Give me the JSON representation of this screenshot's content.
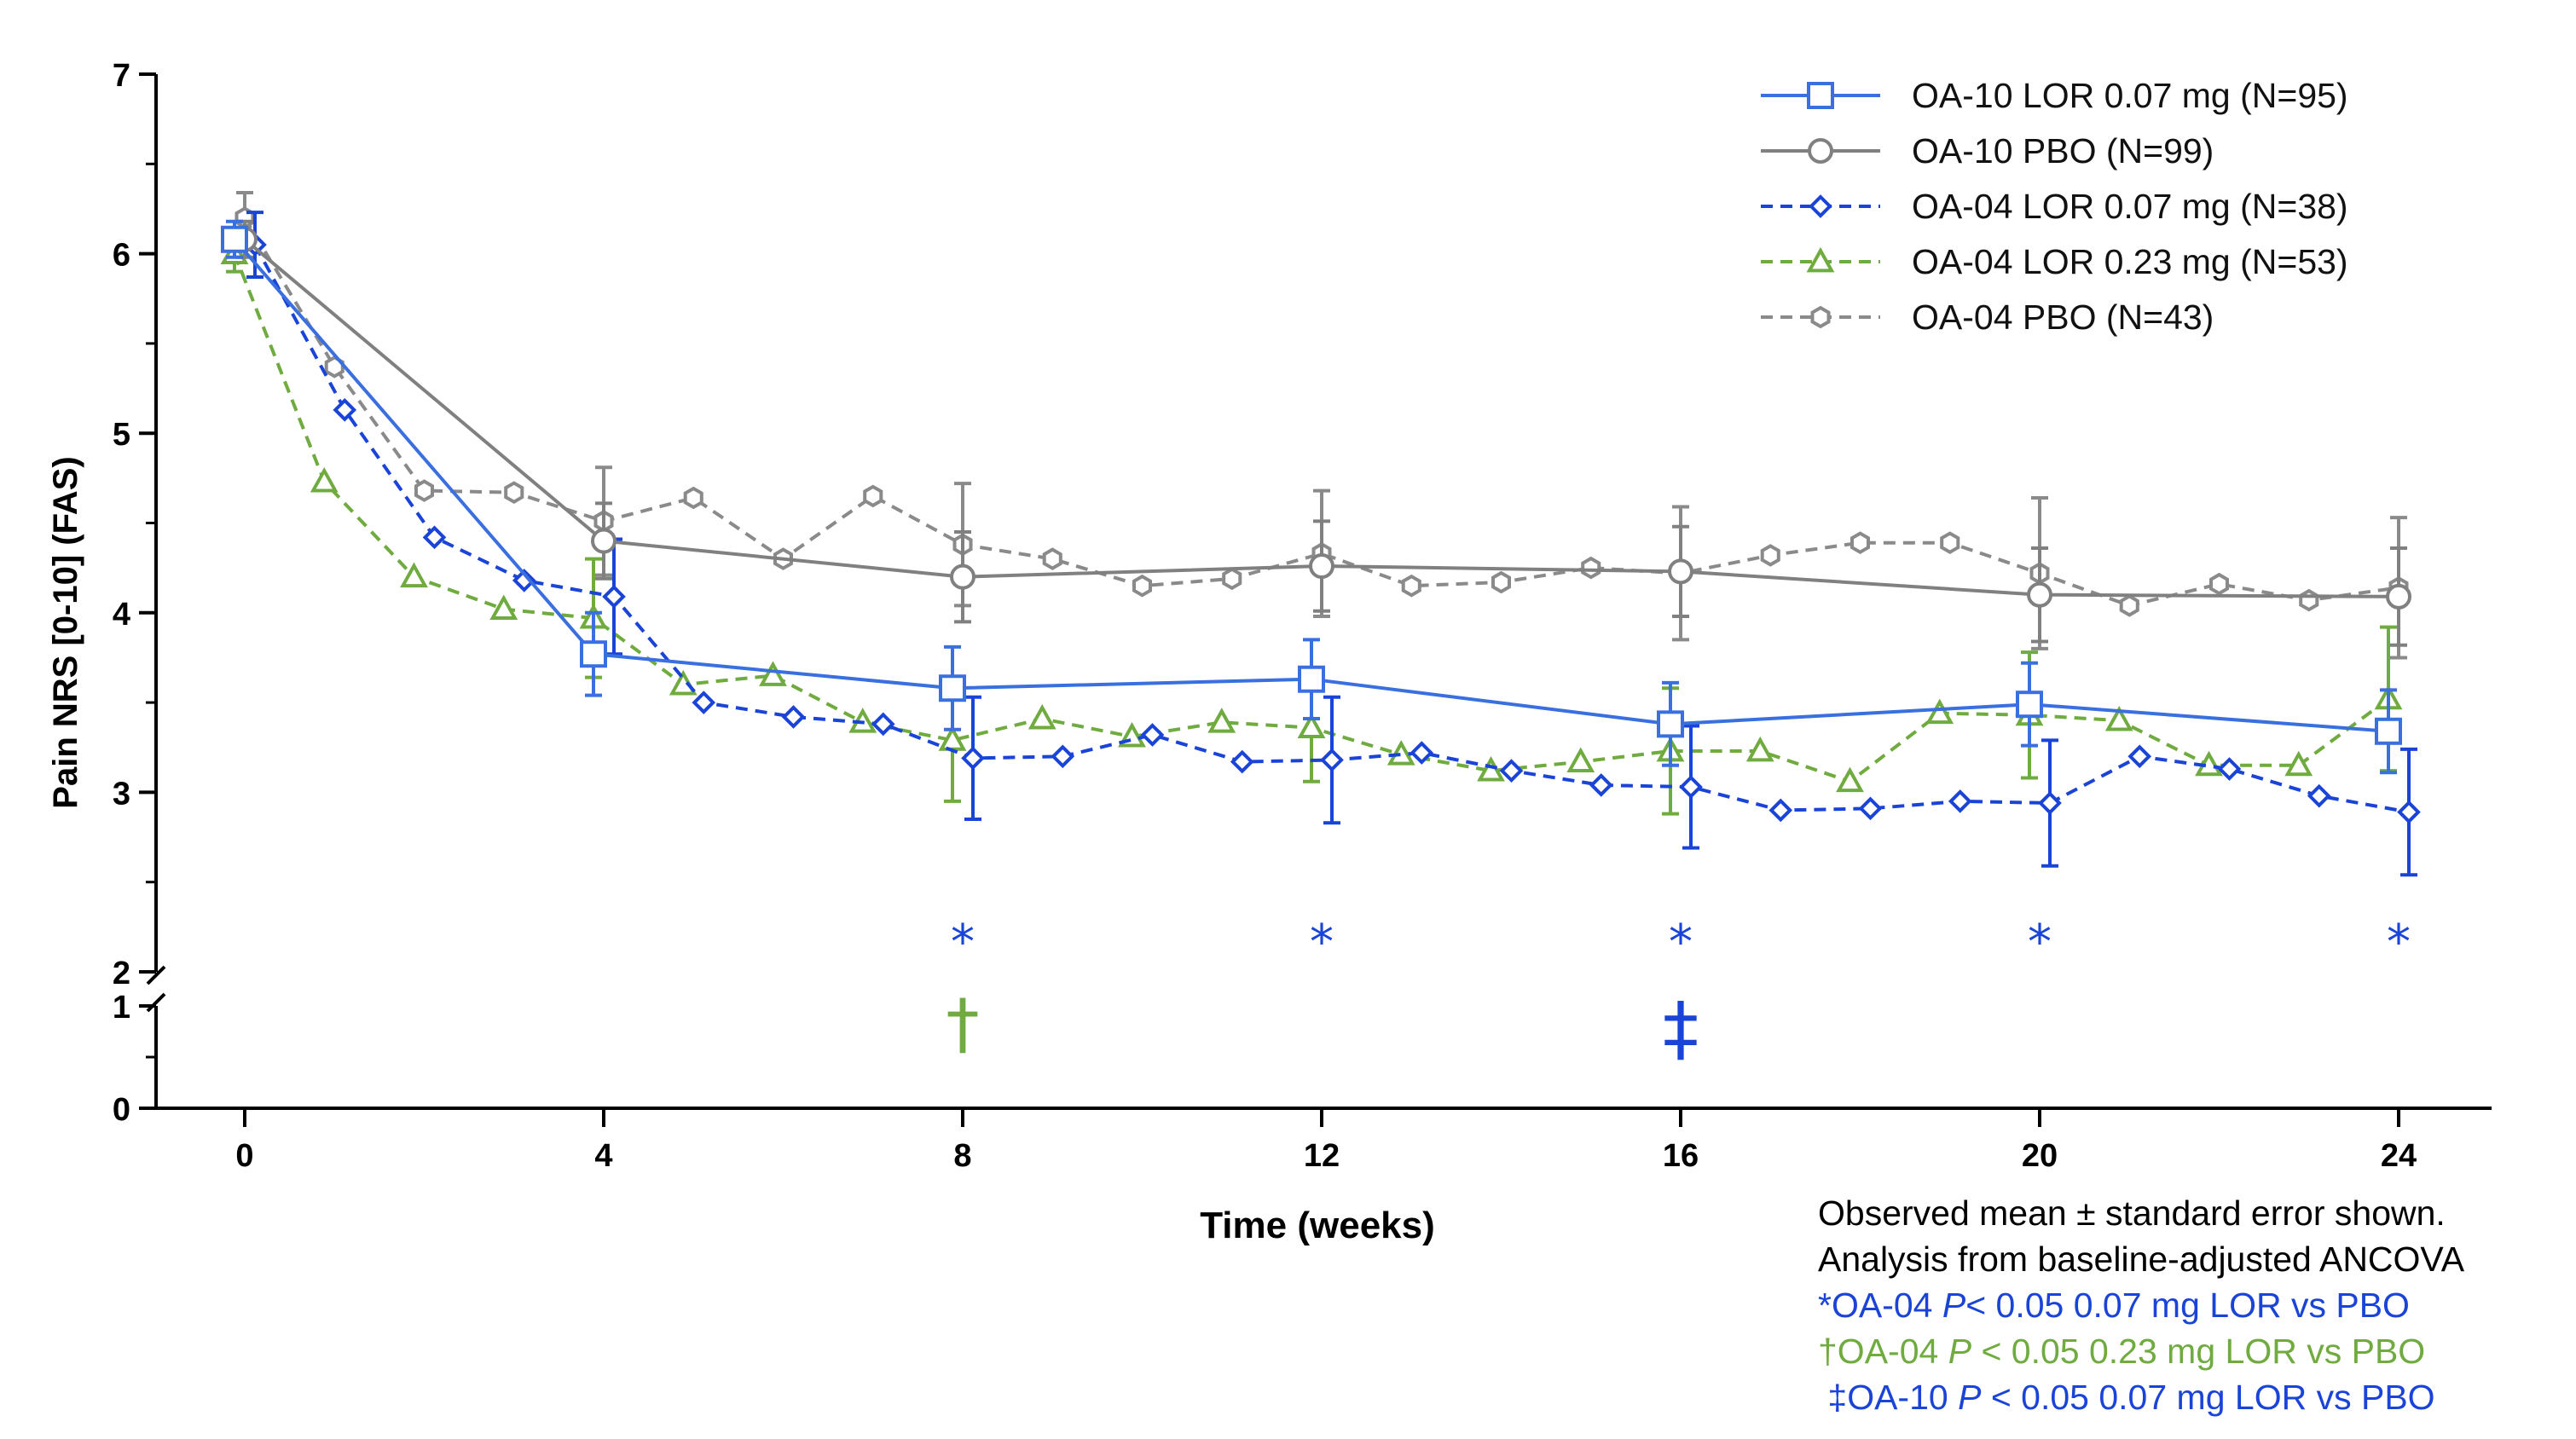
{
  "chart_data": {
    "type": "line",
    "xlabel": "Time (weeks)",
    "ylabel": "Pain NRS [0-10] (FAS)",
    "xlim": [
      -1,
      26
    ],
    "xticks": [
      0,
      4,
      8,
      12,
      16,
      20,
      24
    ],
    "ylim_upper": [
      2,
      7
    ],
    "ylim_lower": [
      0,
      1
    ],
    "yticks": [
      0,
      1,
      2,
      3,
      4,
      5,
      6,
      7
    ],
    "axis_break": "between 1 and 2",
    "grid": false,
    "legend_position": "top-right",
    "series": [
      {
        "name": "OA-10 LOR 0.07 mg (N=95)",
        "color": "#3a6fe0",
        "dash": "solid",
        "marker": "square",
        "x": [
          0,
          4,
          8,
          12,
          16,
          20,
          24
        ],
        "y": [
          6.08,
          3.77,
          3.58,
          3.63,
          3.38,
          3.49,
          3.34
        ],
        "err": [
          0.1,
          0.23,
          0.23,
          0.22,
          0.23,
          0.23,
          0.23
        ]
      },
      {
        "name": "OA-10 PBO (N=99)",
        "color": "#808080",
        "dash": "solid",
        "marker": "circle",
        "x": [
          0,
          4,
          8,
          12,
          16,
          20,
          24
        ],
        "y": [
          6.08,
          4.4,
          4.2,
          4.26,
          4.23,
          4.1,
          4.09
        ],
        "err": [
          0.1,
          0.21,
          0.25,
          0.25,
          0.25,
          0.26,
          0.27
        ]
      },
      {
        "name": "OA-04 LOR 0.07 mg (N=38)",
        "color": "#1a44d8",
        "dash": "dashed",
        "marker": "diamond",
        "x": [
          0,
          1,
          2,
          3,
          4,
          5,
          6,
          7,
          8,
          9,
          10,
          11,
          12,
          13,
          14,
          15,
          16,
          17,
          18,
          19,
          20,
          21,
          22,
          23,
          24
        ],
        "y": [
          6.05,
          5.13,
          4.42,
          4.18,
          4.09,
          3.5,
          3.42,
          3.38,
          3.19,
          3.2,
          3.32,
          3.17,
          3.18,
          3.22,
          3.12,
          3.04,
          3.03,
          2.9,
          2.91,
          2.95,
          2.94,
          3.2,
          3.13,
          2.98,
          2.89
        ],
        "err": [
          0.18,
          null,
          null,
          null,
          0.32,
          null,
          null,
          null,
          0.34,
          null,
          null,
          null,
          0.35,
          null,
          null,
          null,
          0.34,
          null,
          null,
          null,
          0.35,
          null,
          null,
          null,
          0.35
        ]
      },
      {
        "name": "OA-04 LOR 0.23 mg (N=53)",
        "color": "#6fab3e",
        "dash": "dashed",
        "marker": "triangle",
        "x": [
          0,
          1,
          2,
          3,
          4,
          5,
          6,
          7,
          8,
          9,
          10,
          11,
          12,
          13,
          14,
          15,
          16,
          17,
          18,
          19,
          20,
          21,
          22,
          23,
          24
        ],
        "y": [
          6.0,
          4.73,
          4.2,
          4.02,
          3.97,
          3.6,
          3.65,
          3.39,
          3.29,
          3.41,
          3.31,
          3.39,
          3.36,
          3.21,
          3.12,
          3.17,
          3.23,
          3.23,
          3.06,
          3.44,
          3.43,
          3.4,
          3.15,
          3.15,
          3.52
        ],
        "err": [
          0.1,
          null,
          null,
          null,
          0.33,
          null,
          null,
          null,
          0.34,
          null,
          null,
          null,
          0.3,
          null,
          null,
          null,
          0.35,
          null,
          null,
          null,
          0.35,
          null,
          null,
          null,
          0.4
        ]
      },
      {
        "name": "OA-04 PBO (N=43)",
        "color": "#8a8a8a",
        "dash": "dashed",
        "marker": "hexagon",
        "x": [
          0,
          1,
          2,
          3,
          4,
          5,
          6,
          7,
          8,
          9,
          10,
          11,
          12,
          13,
          14,
          15,
          16,
          17,
          18,
          19,
          20,
          21,
          22,
          23,
          24
        ],
        "y": [
          6.2,
          5.37,
          4.68,
          4.67,
          4.51,
          4.64,
          4.3,
          4.65,
          4.38,
          4.3,
          4.15,
          4.19,
          4.33,
          4.15,
          4.17,
          4.25,
          4.22,
          4.32,
          4.39,
          4.39,
          4.22,
          4.04,
          4.16,
          4.07,
          4.14
        ],
        "err": [
          0.14,
          null,
          null,
          null,
          0.3,
          null,
          null,
          null,
          0.34,
          null,
          null,
          null,
          0.35,
          null,
          null,
          null,
          0.37,
          null,
          null,
          null,
          0.42,
          null,
          null,
          null,
          0.39
        ]
      }
    ],
    "significance_markers": [
      {
        "x": 8,
        "symbol": "*",
        "row": "star",
        "color": "#1a44d8"
      },
      {
        "x": 12,
        "symbol": "*",
        "row": "star",
        "color": "#1a44d8"
      },
      {
        "x": 16,
        "symbol": "*",
        "row": "star",
        "color": "#1a44d8"
      },
      {
        "x": 20,
        "symbol": "*",
        "row": "star",
        "color": "#1a44d8"
      },
      {
        "x": 24,
        "symbol": "*",
        "row": "star",
        "color": "#1a44d8"
      },
      {
        "x": 8,
        "symbol": "†",
        "row": "lower",
        "color": "#6fab3e"
      },
      {
        "x": 16,
        "symbol": "‡",
        "row": "lower",
        "color": "#1a44d8"
      }
    ]
  },
  "notes": {
    "line1": "Observed mean ± standard error shown.",
    "line2": "Analysis from baseline-adjusted ANCOVA",
    "line3_pre": "*OA-04 ",
    "line3_p": "P",
    "line3_post": "< 0.05 0.07 mg LOR vs PBO",
    "line4_pre": "†OA-04 ",
    "line4_p": "P",
    "line4_post": " < 0.05 0.23 mg LOR vs PBO",
    "line5_pre": " ‡OA-10 ",
    "line5_p": "P",
    "line5_post": " < 0.05 0.07 mg LOR vs PBO",
    "color_black": "#000000",
    "color_blue": "#1a44d8",
    "color_green": "#6fab3e"
  }
}
